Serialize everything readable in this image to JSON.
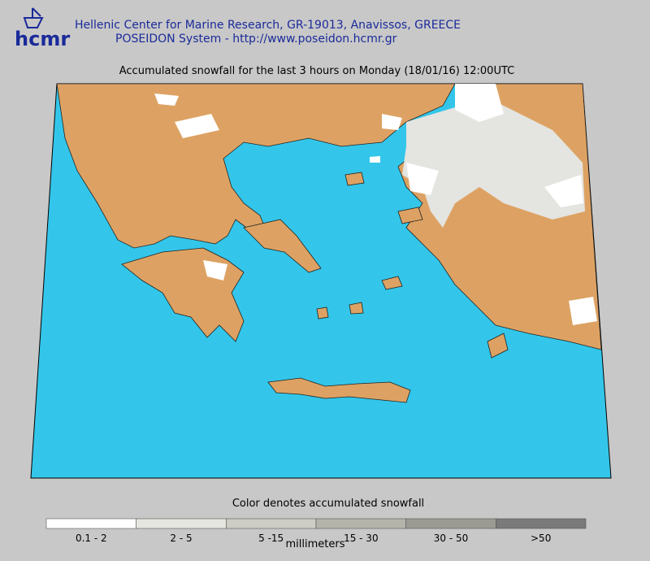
{
  "header": {
    "logo": "hcmr",
    "line1": "Hellenic Center for Marine Research, GR-19013, Anavissos, GREECE",
    "line2": "POSEIDON System - http://www.poseidon.hcmr.gr"
  },
  "map": {
    "title": "Accumulated snowfall for the last 3 hours on Monday (18/01/16) 12:00UTC"
  },
  "legend": {
    "title": "Color denotes accumulated snowfall",
    "unit": "millimeters",
    "items": [
      {
        "label": "0.1 - 2",
        "color": "#ffffff"
      },
      {
        "label": "2 - 5",
        "color": "#e6e6e0"
      },
      {
        "label": "5 -15",
        "color": "#cdcdc5"
      },
      {
        "label": "15 - 30",
        "color": "#b4b4ab"
      },
      {
        "label": "30 - 50",
        "color": "#9b9b93"
      },
      {
        "label": ">50",
        "color": "#7a7a7a"
      }
    ]
  }
}
